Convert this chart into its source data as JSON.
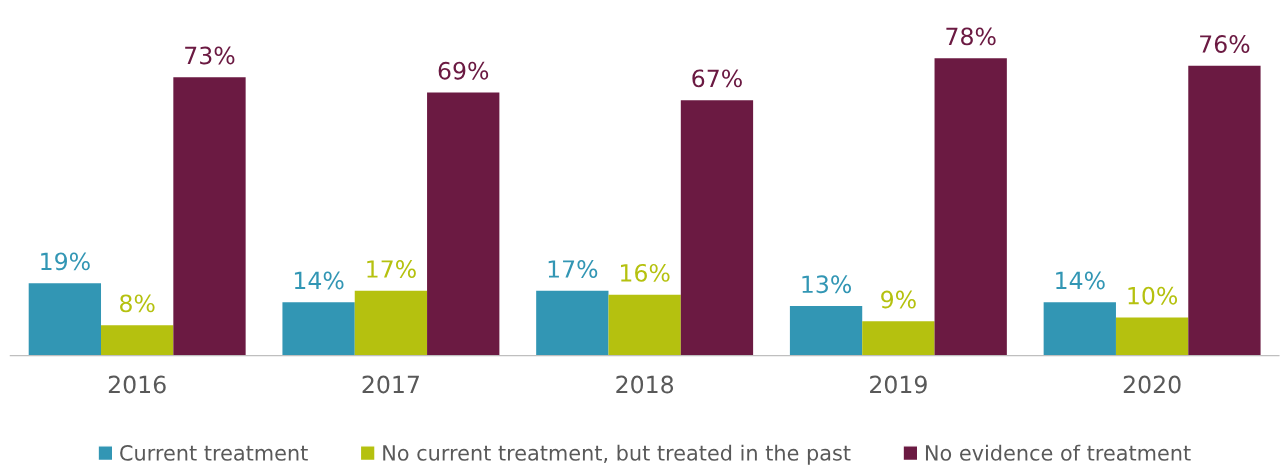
{
  "chart_data": {
    "type": "bar",
    "categories": [
      "2016",
      "2017",
      "2018",
      "2019",
      "2020"
    ],
    "series": [
      {
        "name": "Current treatment",
        "color": "#3296b4",
        "values": [
          19,
          14,
          17,
          13,
          14
        ],
        "value_labels": [
          "19%",
          "14%",
          "17%",
          "13%",
          "14%"
        ]
      },
      {
        "name": "No current treatment, but treated in the past",
        "color": "#b5c10f",
        "values": [
          8,
          17,
          16,
          9,
          10
        ],
        "value_labels": [
          "8%",
          "17%",
          "16%",
          "9%",
          "10%"
        ]
      },
      {
        "name": "No evidence of treatment",
        "color": "#6b1a42",
        "values": [
          73,
          69,
          67,
          78,
          76
        ],
        "value_labels": [
          "73%",
          "69%",
          "67%",
          "78%",
          "76%"
        ]
      }
    ],
    "legend": "bottom",
    "grid": false
  }
}
